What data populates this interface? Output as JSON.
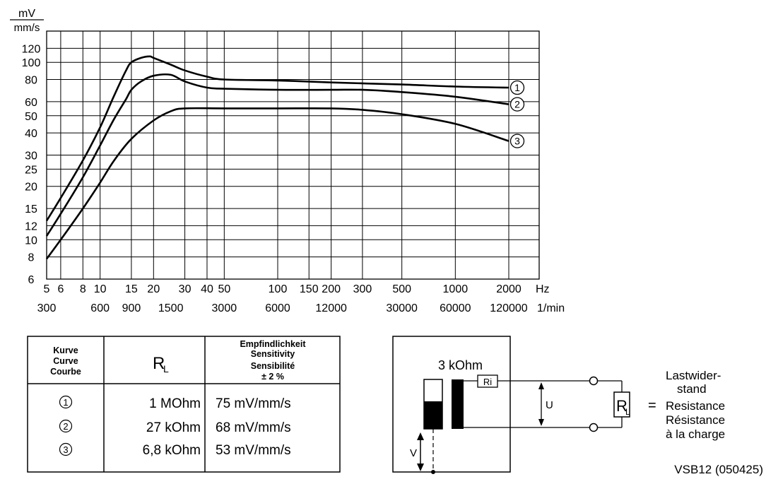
{
  "chart_data": {
    "type": "line",
    "y_unit": [
      "mV",
      "mm/s"
    ],
    "y_scale": "log",
    "x_scale": "log",
    "ylim": [
      6,
      150
    ],
    "xlim": [
      5,
      2000
    ],
    "y_ticks": [
      "6",
      "8",
      "10",
      "12",
      "15",
      "20",
      "25",
      "30",
      "40",
      "50",
      "60",
      "80",
      "100",
      "120"
    ],
    "x_ticks_hz": [
      "5",
      "6",
      "8",
      "10",
      "15",
      "20",
      "30",
      "40",
      "50",
      "100",
      "150",
      "200",
      "300",
      "500",
      "1000",
      "2000"
    ],
    "x_unit_hz": "Hz",
    "x_ticks_rpm": [
      "300",
      "600",
      "900",
      "1500",
      "3000",
      "6000",
      "12000",
      "30000",
      "60000",
      "120000"
    ],
    "x_unit_rpm": "1/min",
    "series": [
      {
        "name": "1",
        "points": [
          [
            5,
            12.8
          ],
          [
            6,
            17.2
          ],
          [
            8,
            28
          ],
          [
            10,
            43
          ],
          [
            12,
            65
          ],
          [
            14,
            90
          ],
          [
            15,
            100
          ],
          [
            17,
            106
          ],
          [
            19,
            108
          ],
          [
            20,
            106
          ],
          [
            25,
            97
          ],
          [
            30,
            90
          ],
          [
            40,
            83
          ],
          [
            50,
            80
          ],
          [
            100,
            79
          ],
          [
            200,
            77
          ],
          [
            500,
            75
          ],
          [
            1000,
            73
          ],
          [
            2000,
            72
          ]
        ]
      },
      {
        "name": "2",
        "points": [
          [
            5,
            10.5
          ],
          [
            6,
            14
          ],
          [
            8,
            22.5
          ],
          [
            10,
            34
          ],
          [
            12,
            48
          ],
          [
            14,
            62
          ],
          [
            15,
            70
          ],
          [
            17,
            78
          ],
          [
            20,
            84
          ],
          [
            25,
            85
          ],
          [
            30,
            78
          ],
          [
            40,
            72
          ],
          [
            50,
            71
          ],
          [
            100,
            70
          ],
          [
            200,
            70
          ],
          [
            300,
            70
          ],
          [
            500,
            68
          ],
          [
            1000,
            64
          ],
          [
            2000,
            58
          ]
        ]
      },
      {
        "name": "3",
        "points": [
          [
            5,
            7.8
          ],
          [
            6,
            10
          ],
          [
            8,
            15
          ],
          [
            10,
            21
          ],
          [
            12,
            28
          ],
          [
            15,
            37
          ],
          [
            20,
            47
          ],
          [
            25,
            53
          ],
          [
            30,
            55
          ],
          [
            50,
            55
          ],
          [
            100,
            55
          ],
          [
            200,
            55
          ],
          [
            300,
            54
          ],
          [
            500,
            51
          ],
          [
            1000,
            45
          ],
          [
            2000,
            36
          ]
        ]
      }
    ]
  },
  "legend_table": {
    "headers": {
      "curve": [
        "Kurve",
        "Curve",
        "Courbe"
      ],
      "rl": "R",
      "rl_sub": "L",
      "sensitivity": [
        "Empfindlichkeit",
        "Sensitivity",
        "Sensibilité",
        "± 2 %"
      ]
    },
    "rows": [
      {
        "curve": "1",
        "rl": "1 MOhm",
        "sensitivity": "75 mV/mm/s"
      },
      {
        "curve": "2",
        "rl": "27 kOhm",
        "sensitivity": "68 mV/mm/s"
      },
      {
        "curve": "3",
        "rl": "6,8 kOhm",
        "sensitivity": "53 mV/mm/s"
      }
    ]
  },
  "circuit": {
    "ri_value": "3 kOhm",
    "ri_label": "Ri",
    "u_label": "U",
    "v_label": "V",
    "rl_label": "R",
    "rl_sub": "L",
    "equals": "=",
    "load_text": [
      "Lastwider-",
      "stand",
      "Resistance",
      "Résistance",
      "à la charge"
    ]
  },
  "doc_code": "VSB12 (050425)"
}
